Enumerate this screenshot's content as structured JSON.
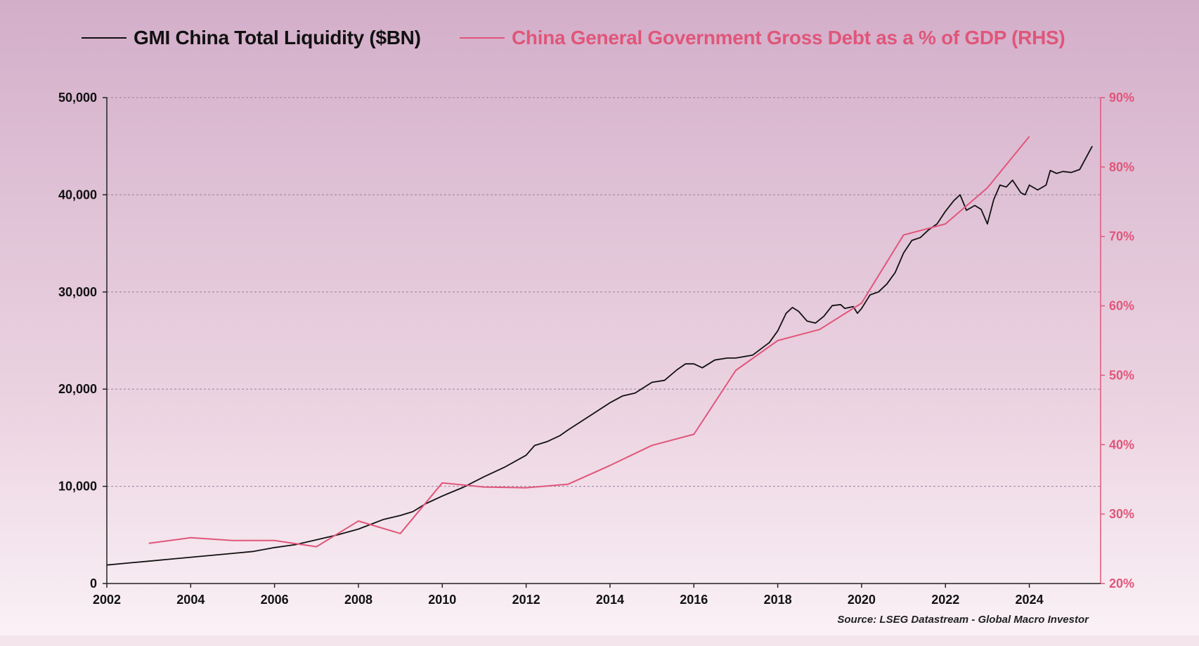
{
  "chart_data": {
    "type": "line",
    "colors": {
      "liquidity": "#111111",
      "debt": "#e0567a",
      "grid": "#9a7fa0",
      "right_axis": "#e0567a",
      "left_axis": "#222222"
    },
    "x_ticks": [
      "2002",
      "2004",
      "2006",
      "2008",
      "2010",
      "2012",
      "2014",
      "2016",
      "2018",
      "2020",
      "2022",
      "2024"
    ],
    "xlim": [
      2002,
      2025.7
    ],
    "left_axis": {
      "ylim": [
        0,
        50000
      ],
      "tick_values": [
        0,
        10000,
        20000,
        30000,
        40000,
        50000
      ],
      "tick_labels": [
        "0",
        "10,000",
        "20,000",
        "30,000",
        "40,000",
        "50,000"
      ]
    },
    "right_axis": {
      "ylim": [
        20,
        90
      ],
      "tick_values": [
        20,
        30,
        40,
        50,
        60,
        70,
        80,
        90
      ],
      "tick_labels": [
        "20%",
        "30%",
        "40%",
        "50%",
        "60%",
        "70%",
        "80%",
        "90%"
      ]
    },
    "series": [
      {
        "name": "GMI China Total Liquidity ($BN)",
        "axis": "left",
        "color": "#111111",
        "points": [
          [
            2002.0,
            1900
          ],
          [
            2002.5,
            2100
          ],
          [
            2003.0,
            2300
          ],
          [
            2003.5,
            2500
          ],
          [
            2004.0,
            2700
          ],
          [
            2004.5,
            2900
          ],
          [
            2005.0,
            3100
          ],
          [
            2005.5,
            3300
          ],
          [
            2006.0,
            3700
          ],
          [
            2006.5,
            4000
          ],
          [
            2007.0,
            4500
          ],
          [
            2007.5,
            5000
          ],
          [
            2008.0,
            5600
          ],
          [
            2008.3,
            6100
          ],
          [
            2008.6,
            6600
          ],
          [
            2009.0,
            7000
          ],
          [
            2009.3,
            7400
          ],
          [
            2009.6,
            8200
          ],
          [
            2010.0,
            9000
          ],
          [
            2010.5,
            9900
          ],
          [
            2011.0,
            11000
          ],
          [
            2011.5,
            12000
          ],
          [
            2012.0,
            13200
          ],
          [
            2012.2,
            14200
          ],
          [
            2012.5,
            14600
          ],
          [
            2012.8,
            15200
          ],
          [
            2013.0,
            15800
          ],
          [
            2013.5,
            17200
          ],
          [
            2014.0,
            18600
          ],
          [
            2014.3,
            19300
          ],
          [
            2014.6,
            19600
          ],
          [
            2015.0,
            20700
          ],
          [
            2015.3,
            20900
          ],
          [
            2015.6,
            22000
          ],
          [
            2015.8,
            22600
          ],
          [
            2016.0,
            22600
          ],
          [
            2016.2,
            22200
          ],
          [
            2016.5,
            23000
          ],
          [
            2016.8,
            23200
          ],
          [
            2017.0,
            23200
          ],
          [
            2017.4,
            23500
          ],
          [
            2017.8,
            24800
          ],
          [
            2018.0,
            26000
          ],
          [
            2018.2,
            27800
          ],
          [
            2018.35,
            28400
          ],
          [
            2018.5,
            28000
          ],
          [
            2018.7,
            27000
          ],
          [
            2018.9,
            26800
          ],
          [
            2019.1,
            27500
          ],
          [
            2019.3,
            28600
          ],
          [
            2019.5,
            28700
          ],
          [
            2019.6,
            28300
          ],
          [
            2019.8,
            28500
          ],
          [
            2019.9,
            27800
          ],
          [
            2020.0,
            28300
          ],
          [
            2020.2,
            29700
          ],
          [
            2020.4,
            30000
          ],
          [
            2020.6,
            30800
          ],
          [
            2020.8,
            32000
          ],
          [
            2021.0,
            34000
          ],
          [
            2021.2,
            35300
          ],
          [
            2021.4,
            35600
          ],
          [
            2021.6,
            36400
          ],
          [
            2021.8,
            37000
          ],
          [
            2022.0,
            38300
          ],
          [
            2022.2,
            39400
          ],
          [
            2022.35,
            40000
          ],
          [
            2022.5,
            38400
          ],
          [
            2022.7,
            38900
          ],
          [
            2022.85,
            38500
          ],
          [
            2023.0,
            37000
          ],
          [
            2023.15,
            39500
          ],
          [
            2023.3,
            41000
          ],
          [
            2023.45,
            40800
          ],
          [
            2023.6,
            41500
          ],
          [
            2023.8,
            40200
          ],
          [
            2023.9,
            40000
          ],
          [
            2024.0,
            41000
          ],
          [
            2024.2,
            40500
          ],
          [
            2024.4,
            41000
          ],
          [
            2024.5,
            42500
          ],
          [
            2024.65,
            42200
          ],
          [
            2024.8,
            42400
          ],
          [
            2025.0,
            42300
          ],
          [
            2025.2,
            42600
          ],
          [
            2025.5,
            45000
          ]
        ]
      },
      {
        "name": "China General Government Gross Debt as a % of GDP (RHS)",
        "axis": "right",
        "color": "#e0567a",
        "points": [
          [
            2003,
            25.8
          ],
          [
            2004,
            26.6
          ],
          [
            2005,
            26.2
          ],
          [
            2006,
            26.2
          ],
          [
            2007,
            25.3
          ],
          [
            2008,
            29.0
          ],
          [
            2009,
            27.2
          ],
          [
            2010,
            34.5
          ],
          [
            2011,
            33.9
          ],
          [
            2012,
            33.8
          ],
          [
            2013,
            34.3
          ],
          [
            2014,
            37.0
          ],
          [
            2015,
            39.9
          ],
          [
            2016,
            41.5
          ],
          [
            2017,
            50.7
          ],
          [
            2018,
            55.0
          ],
          [
            2019,
            56.6
          ],
          [
            2020,
            60.4
          ],
          [
            2021,
            70.2
          ],
          [
            2022,
            71.8
          ],
          [
            2023,
            77.0
          ],
          [
            2024,
            84.4
          ]
        ]
      }
    ]
  },
  "legend": {
    "liquidity_label": "GMI China Total Liquidity ($BN)",
    "debt_label": "China General Government Gross Debt as a % of GDP (RHS)"
  },
  "source_note": "Source: LSEG Datastream - Global Macro Investor"
}
